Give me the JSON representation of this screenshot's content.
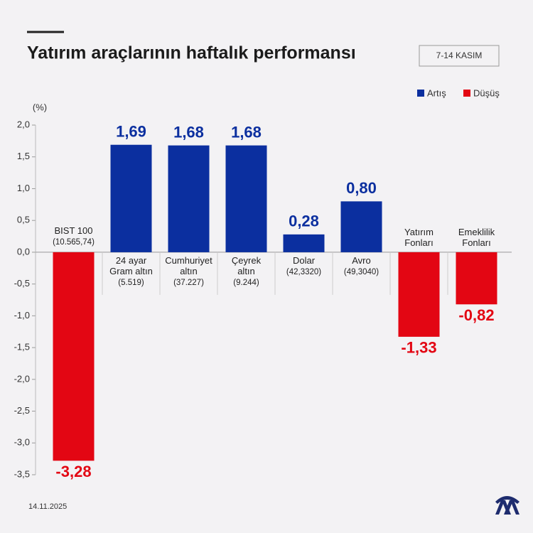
{
  "chart_data": {
    "type": "bar",
    "title": "Yatırım araçlarının haftalık performansı",
    "badge": "7-14 KASIM",
    "y_label": "(%)",
    "date": "14.11.2025",
    "categories": [
      "BIST 100",
      "24 ayar\nGram altın",
      "Cumhuriyet\naltın",
      "Çeyrek\naltın",
      "Dolar",
      "Avro",
      "Yatırım\nFonları",
      "Emeklilik\nFonları"
    ],
    "category_notes": [
      "(10.565,74)",
      "(5.519)",
      "(37.227)",
      "(9.244)",
      "(42,3320)",
      "(49,3040)",
      null,
      null
    ],
    "series": [
      {
        "name": "Artış",
        "color": "#0b2f9f",
        "values": [
          null,
          1.69,
          1.68,
          1.68,
          0.28,
          0.8,
          null,
          null
        ],
        "value_labels": [
          null,
          "1,69",
          "1,68",
          "1,68",
          "0,28",
          "0,80",
          null,
          null
        ]
      },
      {
        "name": "Düşüş",
        "color": "#e30613",
        "values": [
          -3.28,
          null,
          null,
          null,
          null,
          null,
          -1.33,
          -0.82
        ],
        "value_labels": [
          "-3,28",
          null,
          null,
          null,
          null,
          null,
          "-1,33",
          "-0,82"
        ]
      }
    ],
    "ylim": [
      -3.5,
      2.0
    ],
    "yticks": [
      {
        "value": 2.0,
        "label": "2,0"
      },
      {
        "value": 1.5,
        "label": "1,5"
      },
      {
        "value": 1.0,
        "label": "1,0"
      },
      {
        "value": 0.5,
        "label": "0,5"
      },
      {
        "value": 0.0,
        "label": "0,0"
      },
      {
        "value": -0.5,
        "label": "-0,5"
      },
      {
        "value": -1.0,
        "label": "-1,0"
      },
      {
        "value": -1.5,
        "label": "-1,5"
      },
      {
        "value": -2.0,
        "label": "-2,0"
      },
      {
        "value": -2.5,
        "label": "-2,5"
      },
      {
        "value": -3.0,
        "label": "-3,0"
      },
      {
        "value": -3.5,
        "label": "-3,5"
      }
    ],
    "grid": false
  }
}
